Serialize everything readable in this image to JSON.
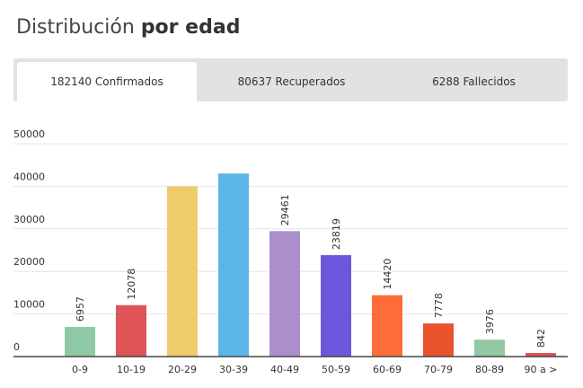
{
  "page": {
    "title_regular": "Distribución ",
    "title_bold": "por edad"
  },
  "tabs": [
    {
      "label": "182140 Confirmados",
      "active": true
    },
    {
      "label": "80637 Recuperados",
      "active": false
    },
    {
      "label": "6288 Fallecidos",
      "active": false
    }
  ],
  "chart_data": {
    "type": "bar",
    "categories": [
      "0-9",
      "10-19",
      "20-29",
      "30-39",
      "40-49",
      "50-59",
      "60-69",
      "70-79",
      "80-89",
      "90 a >"
    ],
    "values": [
      6957,
      12078,
      40000,
      43000,
      29461,
      23819,
      14420,
      7778,
      3976,
      842
    ],
    "data_labels": [
      "6957",
      "12078",
      "",
      "",
      "29461",
      "23819",
      "14420",
      "7778",
      "3976",
      "842"
    ],
    "colors": [
      "#8fc9a3",
      "#de5457",
      "#f0cb69",
      "#5bb6e5",
      "#aa8fcc",
      "#6d56dd",
      "#fe6d38",
      "#e8532d",
      "#92c9a0",
      "#de5457"
    ],
    "y_ticks": [
      0,
      10000,
      20000,
      30000,
      40000,
      50000
    ],
    "ylim": [
      0,
      50000
    ],
    "grid": true,
    "title": "",
    "xlabel": "",
    "ylabel": ""
  }
}
